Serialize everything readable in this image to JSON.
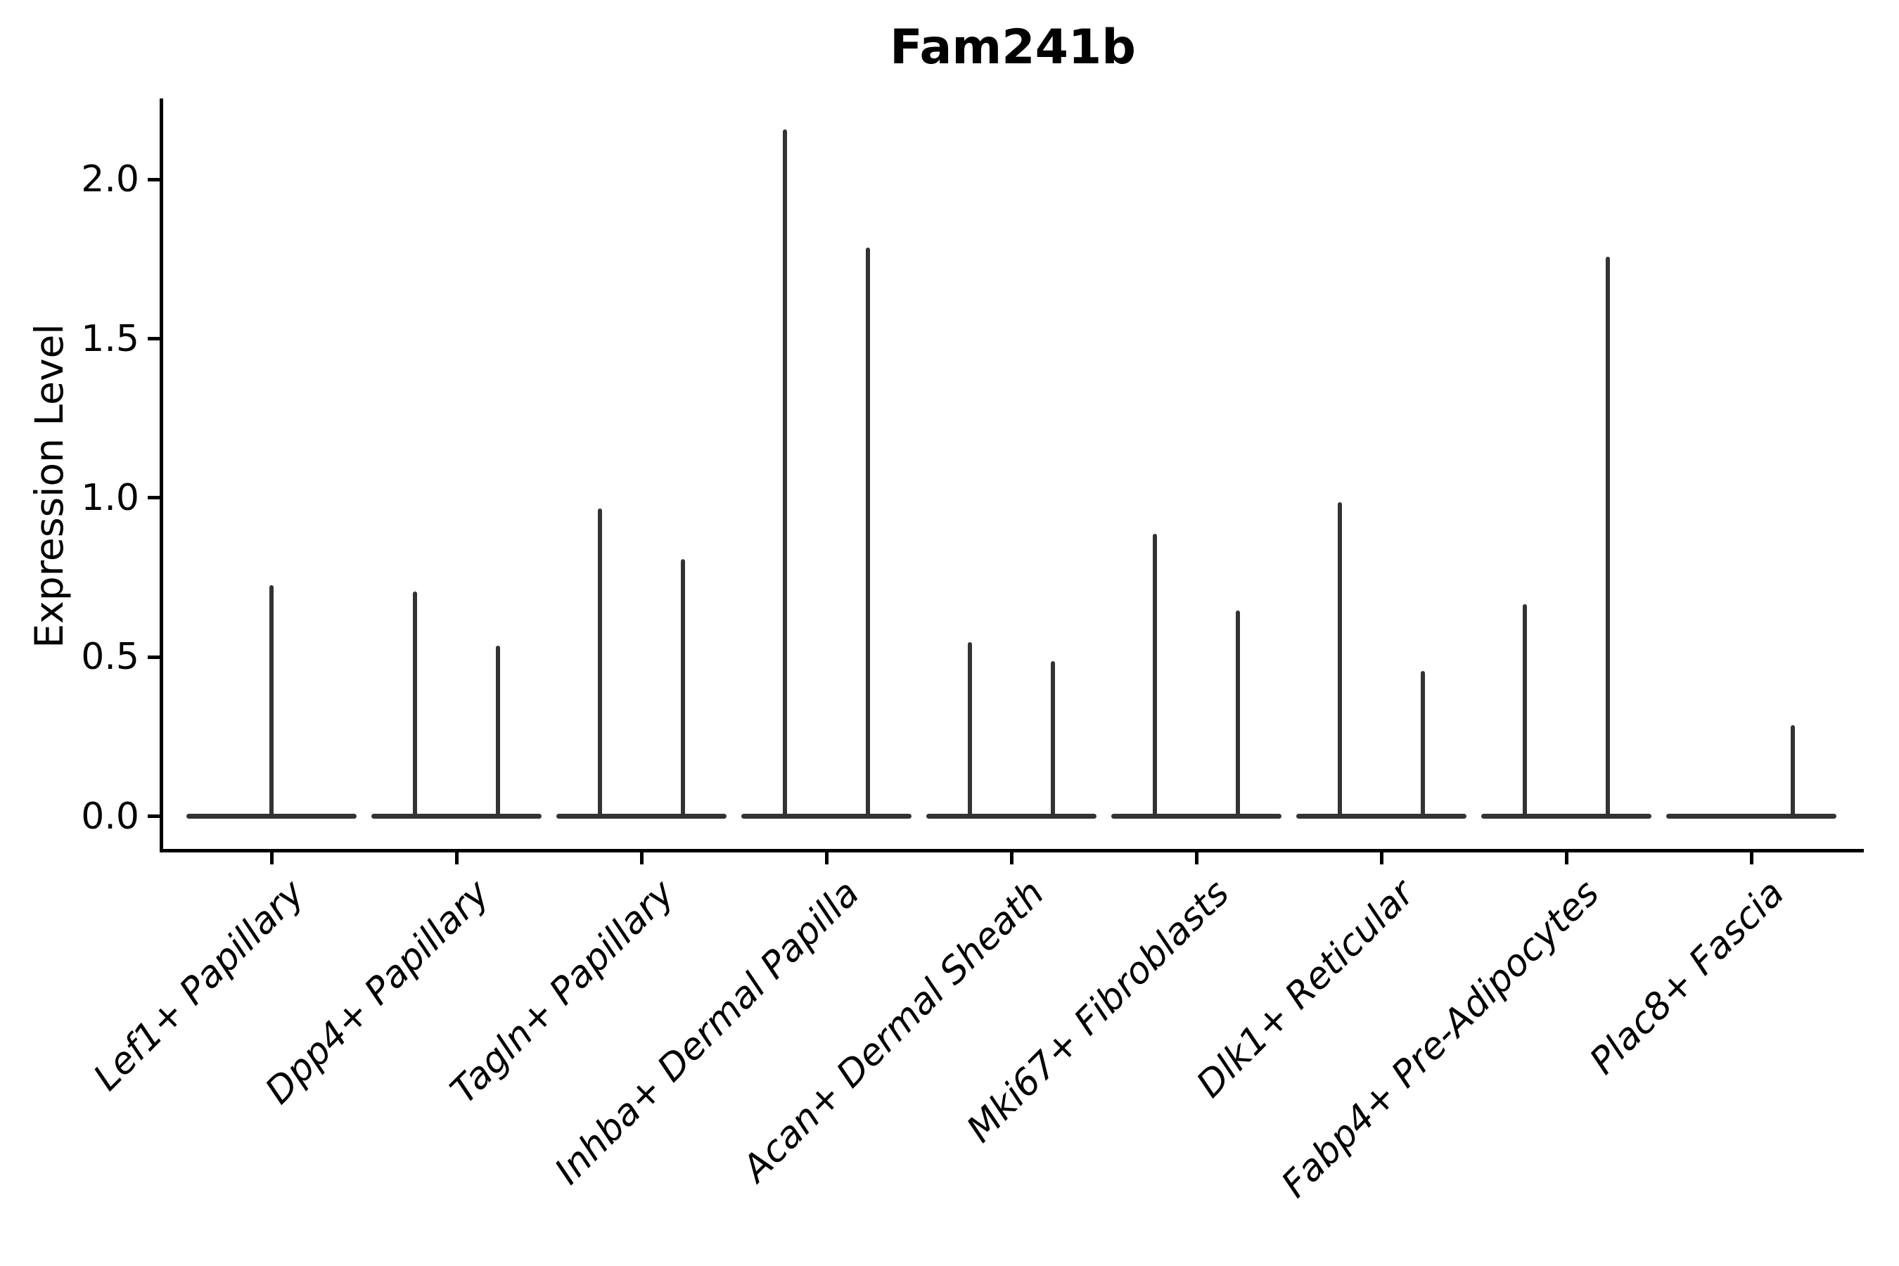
{
  "colors": {
    "line": "#333333",
    "axis": "#000000",
    "text": "#000000",
    "background": "#ffffff"
  },
  "chart_data": {
    "type": "violin",
    "title": "Fam241b",
    "xlabel": "",
    "ylabel": "Expression Level",
    "ylim": [
      -0.11,
      2.26
    ],
    "grid": false,
    "legend": null,
    "x_tick_rotation": 45,
    "yticks": [
      0.0,
      0.5,
      1.0,
      1.5,
      2.0
    ],
    "ytick_labels": [
      "0.0",
      "0.5",
      "1.0",
      "1.5",
      "2.0"
    ],
    "categories": [
      "Lef1+ Papillary",
      "Dpp4+ Papillary",
      "Tagln+ Papillary",
      "Inhba+ Dermal Papilla",
      "Acan+ Dermal Sheath",
      "Mki67+ Fibroblasts",
      "Dlk1+ Reticular",
      "Fabp4+ Pre-Adipocytes",
      "Plac8+ Fascia"
    ],
    "violins": [
      {
        "category": "Lef1+ Papillary",
        "base_value": 0.0,
        "spikes": [
          {
            "offset": 0.0,
            "max": 0.72
          }
        ]
      },
      {
        "category": "Dpp4+ Papillary",
        "base_value": 0.0,
        "spikes": [
          {
            "offset": -0.226,
            "max": 0.7
          },
          {
            "offset": 0.226,
            "max": 0.53
          }
        ]
      },
      {
        "category": "Tagln+ Papillary",
        "base_value": 0.0,
        "spikes": [
          {
            "offset": -0.226,
            "max": 0.96
          },
          {
            "offset": 0.226,
            "max": 0.8
          }
        ]
      },
      {
        "category": "Inhba+ Dermal Papilla",
        "base_value": 0.0,
        "spikes": [
          {
            "offset": -0.226,
            "max": 2.15
          },
          {
            "offset": 0.226,
            "max": 1.78
          }
        ]
      },
      {
        "category": "Acan+ Dermal Sheath",
        "base_value": 0.0,
        "spikes": [
          {
            "offset": -0.226,
            "max": 0.54
          },
          {
            "offset": 0.226,
            "max": 0.48
          }
        ]
      },
      {
        "category": "Mki67+ Fibroblasts",
        "base_value": 0.0,
        "spikes": [
          {
            "offset": -0.226,
            "max": 0.88
          },
          {
            "offset": 0.226,
            "max": 0.64
          }
        ]
      },
      {
        "category": "Dlk1+ Reticular",
        "base_value": 0.0,
        "spikes": [
          {
            "offset": -0.226,
            "max": 0.98
          },
          {
            "offset": 0.226,
            "max": 0.45
          }
        ]
      },
      {
        "category": "Fabp4+ Pre-Adipocytes",
        "base_value": 0.0,
        "spikes": [
          {
            "offset": -0.226,
            "max": 0.66
          },
          {
            "offset": 0.226,
            "max": 1.75
          }
        ]
      },
      {
        "category": "Plac8+ Fascia",
        "base_value": 0.0,
        "spikes": [
          {
            "offset": 0.226,
            "max": 0.28
          }
        ]
      }
    ]
  }
}
